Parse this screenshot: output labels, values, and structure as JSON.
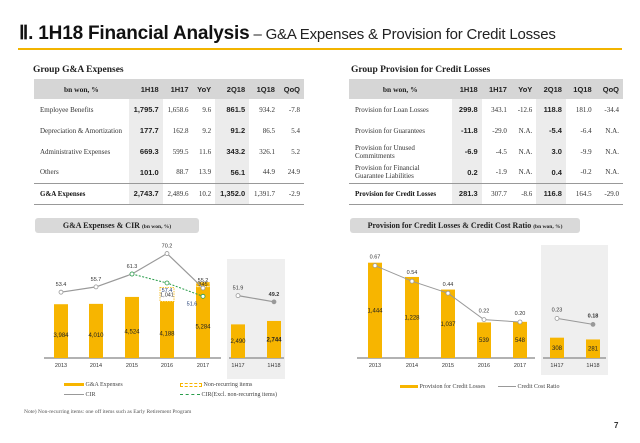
{
  "header": {
    "title_bold": "Ⅱ. 1H18 Financial Analysis",
    "title_dash": " – ",
    "title_sub": "G&A Expenses & Provision for Credit Losses"
  },
  "ga_table": {
    "title": "Group G&A Expenses",
    "columns": [
      "bn won, %",
      "1H18",
      "1H17",
      "YoY",
      "2Q18",
      "1Q18",
      "QoQ"
    ],
    "rows": [
      {
        "label": "Employee Benefits",
        "values": [
          "1,795.7",
          "1,658.6",
          "9.6",
          "861.5",
          "934.2",
          "-7.8"
        ]
      },
      {
        "label": "Depreciation & Amortization",
        "values": [
          "177.7",
          "162.8",
          "9.2",
          "91.2",
          "86.5",
          "5.4"
        ]
      },
      {
        "label": "Administrative Expenses",
        "values": [
          "669.3",
          "599.5",
          "11.6",
          "343.2",
          "326.1",
          "5.2"
        ]
      },
      {
        "label": "Others",
        "values": [
          "101.0",
          "88.7",
          "13.9",
          "56.1",
          "44.9",
          "24.9"
        ]
      }
    ],
    "total": {
      "label": "G&A Expenses",
      "values": [
        "2,743.7",
        "2,489.6",
        "10.2",
        "1,352.0",
        "1,391.7",
        "-2.9"
      ]
    }
  },
  "pcl_table": {
    "title": "Group Provision for Credit Losses",
    "columns": [
      "bn won, %",
      "1H18",
      "1H17",
      "YoY",
      "2Q18",
      "1Q18",
      "QoQ"
    ],
    "rows": [
      {
        "label": "Provision for Loan Losses",
        "label2": "",
        "values": [
          "299.8",
          "343.1",
          "-12.6",
          "118.8",
          "181.0",
          "-34.4"
        ]
      },
      {
        "label": "Provision for Guarantees",
        "label2": "",
        "values": [
          "-11.8",
          "-29.0",
          "N.A.",
          "-5.4",
          "-6.4",
          "N.A."
        ]
      },
      {
        "label": "Provision for Unused",
        "label2": "Commitments",
        "values": [
          "-6.9",
          "-4.5",
          "N.A.",
          "3.0",
          "-9.9",
          "N.A."
        ]
      },
      {
        "label": "Provision for Financial",
        "label2": "Guarantee Liabilities",
        "values": [
          "0.2",
          "-1.9",
          "N.A.",
          "0.4",
          "-0.2",
          "N.A."
        ]
      }
    ],
    "total": {
      "label": "Provision for Credit Losses",
      "values": [
        "281.3",
        "307.7",
        "-8.6",
        "116.8",
        "164.5",
        "-29.0"
      ]
    }
  },
  "chart_data": [
    {
      "type": "bar",
      "title": "G&A Expenses & CIR",
      "unit": "(bn won, %)",
      "categories": [
        "2013",
        "2014",
        "2015",
        "2016",
        "2017",
        "1H17",
        "1H18"
      ],
      "series": [
        {
          "name": "G&A Expenses",
          "type": "bar",
          "values": [
            3984,
            4010,
            4524,
            4188,
            5284,
            2490,
            2744
          ],
          "labels": [
            "3,984",
            "4,010",
            "4,524",
            "4,188",
            "5,284",
            "2,490",
            "2,744"
          ],
          "color": "#f7b500"
        },
        {
          "name": "Non-recurring items",
          "type": "bar-stacked",
          "values": [
            null,
            null,
            null,
            1041,
            345,
            null,
            null
          ],
          "labels": [
            "",
            "",
            "",
            "1,041",
            "345",
            "",
            ""
          ],
          "color": "#f7b500"
        },
        {
          "name": "CIR",
          "type": "line",
          "values": [
            53.4,
            55.7,
            61.3,
            70.2,
            55.2,
            51.9,
            49.2
          ],
          "labels": [
            "53.4",
            "55.7",
            "61.3",
            "70.2",
            "55.2",
            "51.9",
            "49.2"
          ],
          "color": "#999999"
        },
        {
          "name": "CIR(Excl. non-recurring items)",
          "type": "line-dashed",
          "values": [
            null,
            null,
            61.3,
            57.4,
            51.6,
            null,
            null
          ],
          "labels": [
            "",
            "",
            "",
            "57.4",
            "51.6",
            "",
            ""
          ],
          "color": "#2a9d4b"
        }
      ],
      "legend": [
        "G&A Expenses",
        "Non-recurring items",
        "CIR",
        "CIR(Excl. non-recurring items)"
      ],
      "legend_position": "bottom",
      "highlight_categories": [
        "1H17",
        "1H18"
      ],
      "note": "Note) Non-recurring items: one off items such as Early Retirement Program"
    },
    {
      "type": "bar",
      "title": "Provision for Credit Losses & Credit Cost Ratio",
      "unit": "(bn won, %)",
      "categories": [
        "2013",
        "2014",
        "2015",
        "2016",
        "2017",
        "1H17",
        "1H18"
      ],
      "series": [
        {
          "name": "Provision for Credit Losses",
          "type": "bar",
          "values": [
            1444,
            1228,
            1037,
            539,
            548,
            308,
            281
          ],
          "labels": [
            "1,444",
            "1,228",
            "1,037",
            "539",
            "548",
            "308",
            "281"
          ],
          "color": "#f7b500"
        },
        {
          "name": "Credit Cost Ratio",
          "type": "line",
          "values": [
            0.67,
            0.54,
            0.44,
            0.22,
            0.2,
            0.23,
            0.18
          ],
          "labels": [
            "0.67",
            "0.54",
            "0.44",
            "0.22",
            "0.20",
            "0.23",
            "0.18"
          ],
          "color": "#999999"
        }
      ],
      "legend": [
        "Provision for Credit Losses",
        "Credit Cost Ratio"
      ],
      "legend_position": "bottom",
      "highlight_categories": [
        "1H17",
        "1H18"
      ]
    }
  ],
  "page_number": "7"
}
